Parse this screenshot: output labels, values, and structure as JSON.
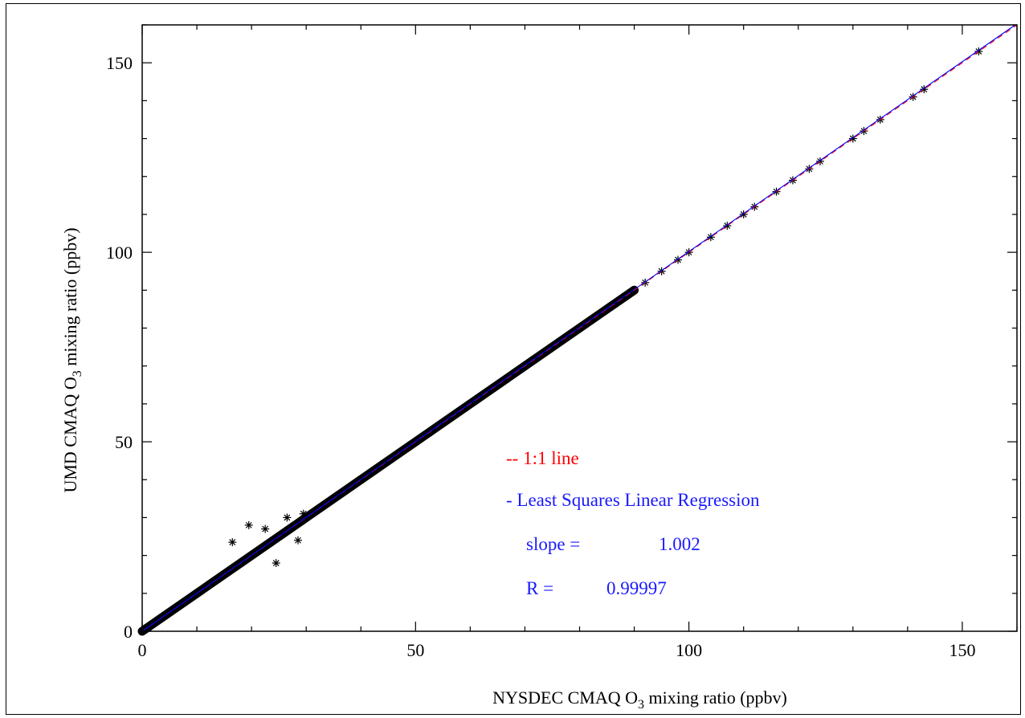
{
  "chart_data": {
    "type": "scatter",
    "title": "",
    "xlabel": {
      "pre": "NYSDEC CMAQ O",
      "sub": "3",
      "post": " mixing ratio (ppbv)"
    },
    "ylabel": {
      "pre": "UMD CMAQ O",
      "sub": "3",
      "post": " mixing ratio (ppbv)"
    },
    "xlim": [
      0,
      160
    ],
    "ylim": [
      0,
      160
    ],
    "xticks": [
      0,
      50,
      100,
      150
    ],
    "yticks": [
      0,
      50,
      100,
      150
    ],
    "xtick_labels": [
      "0",
      "50",
      "100",
      "150"
    ],
    "ytick_labels": [
      "0",
      "50",
      "100",
      "150"
    ],
    "grid": false,
    "marker": "asterisk",
    "series": [
      {
        "marker_color": "#000000",
        "x": [
          0.5,
          2,
          4,
          6,
          8,
          10,
          12,
          14,
          16,
          18,
          20,
          22,
          24,
          26,
          28,
          30,
          33,
          36,
          40,
          44,
          48,
          52,
          56,
          60,
          64,
          68,
          72,
          76,
          80,
          84,
          88,
          92,
          95,
          98,
          100,
          104,
          107,
          110,
          112,
          116,
          119,
          122,
          124,
          130,
          132,
          135,
          141,
          143,
          153,
          19.5,
          16.5,
          22.5,
          24.5,
          28.5,
          26.5,
          29.5
        ],
        "y": [
          0.5,
          2,
          4,
          6,
          8,
          10,
          12,
          14,
          16,
          18,
          20,
          22,
          24,
          26,
          28,
          30,
          33,
          36,
          40,
          44,
          48,
          52,
          56,
          60,
          64,
          68,
          72,
          76,
          80,
          84,
          88,
          92,
          95,
          98,
          100,
          104,
          107,
          110,
          112,
          116,
          119,
          122,
          124,
          130,
          132,
          135,
          141,
          143,
          153,
          28,
          23.5,
          27,
          18,
          24,
          30,
          31
        ]
      }
    ],
    "lines": [
      {
        "name": "1:1 line",
        "style": "dashed",
        "color": "#ff0000",
        "slope": 1.0,
        "intercept": 0
      },
      {
        "name": "Least Squares Linear Regression",
        "style": "solid",
        "color": "#0000ff",
        "slope": 1.002,
        "intercept": 0
      }
    ],
    "annotations": {
      "line1": "-- 1:1 line",
      "line2": "- Least Squares Linear Regression",
      "slope_label": "slope =",
      "slope_value": "1.002",
      "r_label": "R =",
      "r_value": "0.99997",
      "line1_color": "#ff0000",
      "text_color": "#1a1aff"
    }
  }
}
